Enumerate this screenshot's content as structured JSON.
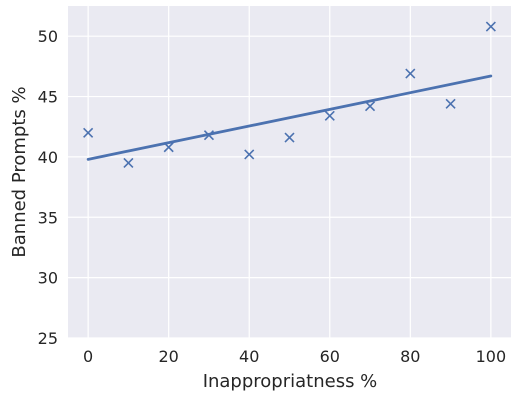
{
  "chart_data": {
    "type": "scatter",
    "xlabel": "Inappropriatness %",
    "ylabel": "Banned Prompts %",
    "xlim": [
      -5,
      105
    ],
    "ylim": [
      25,
      52.5
    ],
    "xticks": [
      0,
      20,
      40,
      60,
      80,
      100
    ],
    "yticks": [
      25,
      30,
      35,
      40,
      45,
      50
    ],
    "x_tick_labels": [
      "0",
      "20",
      "40",
      "60",
      "80",
      "100"
    ],
    "y_tick_labels": [
      "25",
      "30",
      "35",
      "40",
      "45",
      "50"
    ],
    "grid": true,
    "points": {
      "x": [
        0,
        10,
        20,
        30,
        40,
        50,
        60,
        70,
        80,
        90,
        100
      ],
      "y": [
        42.0,
        39.5,
        40.8,
        41.8,
        40.2,
        41.6,
        43.4,
        44.2,
        46.9,
        44.4,
        50.8
      ],
      "marker": "x"
    },
    "trend_line": {
      "x": [
        0,
        100
      ],
      "y": [
        39.8,
        46.7
      ]
    },
    "colors": {
      "plot_background": "#eaeaf2",
      "grid": "#ffffff",
      "series": "#4c72b0",
      "text": "#262626"
    }
  }
}
